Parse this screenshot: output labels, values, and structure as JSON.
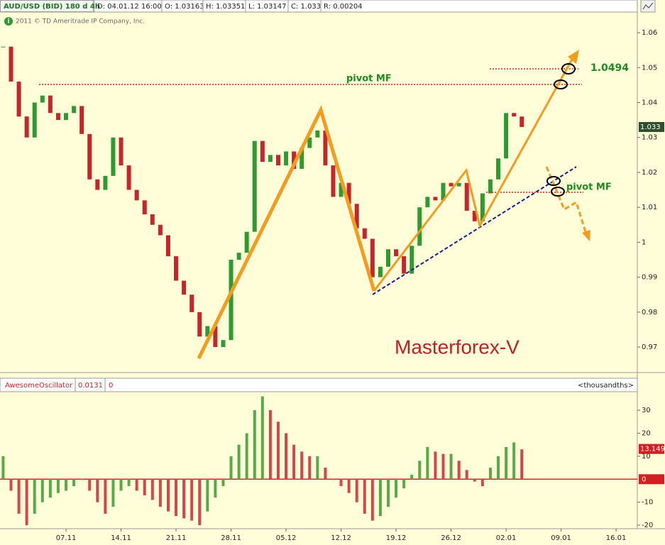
{
  "chart_data": [
    {
      "type": "candlestick",
      "title": "AUD/USD (BID) 180 d 4h",
      "fields": [
        "D: 04.01.12 16:00",
        "O: 1.03163",
        "H: 1.03351",
        "L: 1.03147",
        "C: 1.033",
        "R: 0.00204"
      ],
      "copyright": "2011 © TD Ameritrade IP Company, Inc.",
      "annotations": [
        "pivot MF",
        "1.0494",
        "pivot MF",
        "Masterforex-V"
      ],
      "x": [
        -1,
        0,
        1,
        2,
        3,
        4,
        5,
        6,
        7,
        8,
        9,
        10,
        11,
        12,
        13,
        14,
        15,
        16,
        17,
        18,
        19,
        20,
        21,
        22,
        23,
        24,
        25,
        26,
        27,
        28,
        29,
        30,
        31,
        32,
        33,
        34,
        35,
        36,
        37,
        38,
        39,
        40,
        41,
        42,
        43,
        44,
        45,
        46,
        47,
        48,
        49,
        50,
        51,
        52,
        53,
        54,
        55,
        56,
        57,
        58,
        59,
        60,
        61,
        62,
        63,
        64,
        65
      ],
      "values": [
        1.056,
        1.046,
        1.036,
        1.03,
        1.04,
        1.042,
        1.037,
        1.035,
        1.037,
        1.039,
        1.031,
        1.018,
        1.015,
        1.019,
        1.03,
        1.022,
        1.015,
        1.012,
        1.008,
        1.005,
        1.002,
        0.996,
        0.989,
        0.985,
        0.98,
        0.973,
        0.976,
        0.97,
        0.972,
        0.995,
        0.997,
        1.003,
        1.029,
        1.023,
        1.025,
        1.022,
        1.026,
        1.021,
        1.027,
        1.03,
        1.032,
        1.022,
        1.013,
        1.017,
        1.011,
        1.004,
        1.001,
        0.99,
        0.993,
        0.998,
        0.996,
        0.991,
        0.999,
        1.01,
        1.013,
        1.012,
        1.017,
        1.016,
        1.017,
        1.009,
        1.006,
        1.014,
        1.018,
        1.024,
        1.037,
        1.036,
        1.033
      ],
      "up_color": "#2f9a2f",
      "down_color": "#c3272b",
      "last_value": 1.033,
      "xlim": [
        -1.4,
        79.7
      ],
      "ylim": [
        0.9627,
        1.0657
      ],
      "yticks": [
        1.06,
        1.05,
        1.04,
        1.03,
        1.02,
        1.01,
        1,
        0.99,
        0.98,
        0.97
      ]
    },
    {
      "type": "bar",
      "title": "AwesomeOscillator",
      "fields": [
        0.0131,
        0
      ],
      "unit_label": "<thousandths>",
      "x": [
        -1,
        0,
        1,
        2,
        3,
        4,
        5,
        6,
        7,
        8,
        9,
        10,
        11,
        12,
        13,
        14,
        15,
        16,
        17,
        18,
        19,
        20,
        21,
        22,
        23,
        24,
        25,
        26,
        27,
        28,
        29,
        30,
        31,
        32,
        33,
        34,
        35,
        36,
        37,
        38,
        39,
        40,
        41,
        42,
        43,
        44,
        45,
        46,
        47,
        48,
        49,
        50,
        51,
        52,
        53,
        54,
        55,
        56,
        57,
        58,
        59,
        60,
        61,
        62,
        63,
        64,
        65
      ],
      "values": [
        10,
        -5,
        -15,
        -20,
        -15,
        -10,
        -8,
        -6,
        -5,
        -3,
        0,
        -5,
        -10,
        -15,
        -12,
        -5,
        -3,
        -5,
        -7,
        -9,
        -12,
        -14,
        -16,
        -17,
        -18,
        -20,
        -14,
        -8,
        -3,
        10,
        15,
        20,
        30,
        36,
        30,
        25,
        20,
        15,
        12,
        10,
        10,
        5,
        0,
        -3,
        -6,
        -10,
        -15,
        -18,
        -16,
        -12,
        -8,
        -4,
        2,
        8,
        14,
        12,
        11,
        11,
        8,
        4,
        -1,
        -3,
        5,
        10,
        14,
        16,
        13
      ],
      "up_color": "#5aa84a",
      "down_color": "#d2474a",
      "last_value": 13.149,
      "zero_label": 0,
      "xlim": [
        -1.4,
        79.7
      ],
      "xticks": [
        {
          "value": 7,
          "label": "07.11"
        },
        {
          "value": 14,
          "label": "14.11"
        },
        {
          "value": 21,
          "label": "21.11"
        },
        {
          "value": 28,
          "label": "28.11"
        },
        {
          "value": 35,
          "label": "05.12"
        },
        {
          "value": 42,
          "label": "12.12"
        },
        {
          "value": 49,
          "label": "19.12"
        },
        {
          "value": 56,
          "label": "26.12"
        },
        {
          "value": 63,
          "label": "02.01"
        },
        {
          "value": 70,
          "label": "09.01"
        },
        {
          "value": 77,
          "label": "16.01"
        }
      ],
      "ylim": [
        -21.5,
        37.1
      ],
      "yticks": [
        30,
        20,
        10,
        -10,
        -20
      ]
    }
  ]
}
